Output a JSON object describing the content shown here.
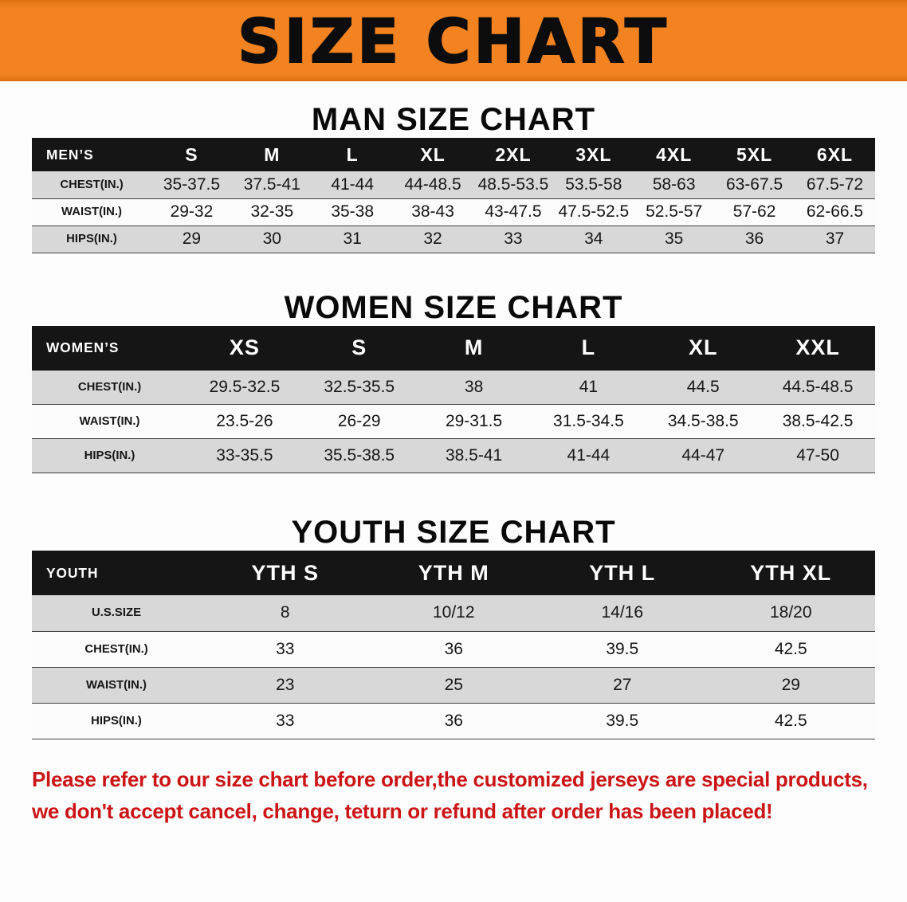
{
  "theme": {
    "banner_orange": "#F28320",
    "banner_orange_dark": "#DE710E",
    "header_black": "#151515",
    "row_gray": "#D8D8D8",
    "row_white": "#FCFCFC",
    "note_red": "#CB1517"
  },
  "banner": {
    "title": "SIZE CHART"
  },
  "sections": [
    {
      "heading": "MAN SIZE CHART",
      "table": {
        "header": [
          "MEN’S",
          "S",
          "M",
          "L",
          "XL",
          "2XL",
          "3XL",
          "4XL",
          "5XL",
          "6XL"
        ],
        "rows": [
          [
            "CHEST(IN.)",
            "35-37.5",
            "37.5-41",
            "41-44",
            "44-48.5",
            "48.5-53.5",
            "53.5-58",
            "58-63",
            "63-67.5",
            "67.5-72"
          ],
          [
            "WAIST(IN.)",
            "29-32",
            "32-35",
            "35-38",
            "38-43",
            "43-47.5",
            "47.5-52.5",
            "52.5-57",
            "57-62",
            "62-66.5"
          ],
          [
            "HIPS(IN.)",
            "29",
            "30",
            "31",
            "32",
            "33",
            "34",
            "35",
            "36",
            "37"
          ]
        ],
        "row_shading": [
          "gray",
          "white",
          "gray"
        ]
      }
    },
    {
      "heading": "WOMEN SIZE CHART",
      "table": {
        "header": [
          "WOMEN’S",
          "XS",
          "S",
          "M",
          "L",
          "XL",
          "XXL"
        ],
        "rows": [
          [
            "CHEST(IN.)",
            "29.5-32.5",
            "32.5-35.5",
            "38",
            "41",
            "44.5",
            "44.5-48.5"
          ],
          [
            "WAIST(IN.)",
            "23.5-26",
            "26-29",
            "29-31.5",
            "31.5-34.5",
            "34.5-38.5",
            "38.5-42.5"
          ],
          [
            "HIPS(IN.)",
            "33-35.5",
            "35.5-38.5",
            "38.5-41",
            "41-44",
            "44-47",
            "47-50"
          ]
        ],
        "row_shading": [
          "gray",
          "white",
          "gray"
        ]
      }
    },
    {
      "heading": "YOUTH SIZE CHART",
      "table": {
        "header": [
          "YOUTH",
          "YTH S",
          "YTH M",
          "YTH L",
          "YTH XL"
        ],
        "rows": [
          [
            "U.S.SIZE",
            "8",
            "10/12",
            "14/16",
            "18/20"
          ],
          [
            "CHEST(IN.)",
            "33",
            "36",
            "39.5",
            "42.5"
          ],
          [
            "WAIST(IN.)",
            "23",
            "25",
            "27",
            "29"
          ],
          [
            "HIPS(IN.)",
            "33",
            "36",
            "39.5",
            "42.5"
          ]
        ],
        "row_shading": [
          "gray",
          "white",
          "gray",
          "white"
        ]
      }
    }
  ],
  "footer": {
    "lines": [
      "Please refer to our size chart before order,the customized jerseys are special products,",
      "we don't accept cancel, change, teturn or refund after order has been placed!"
    ]
  }
}
